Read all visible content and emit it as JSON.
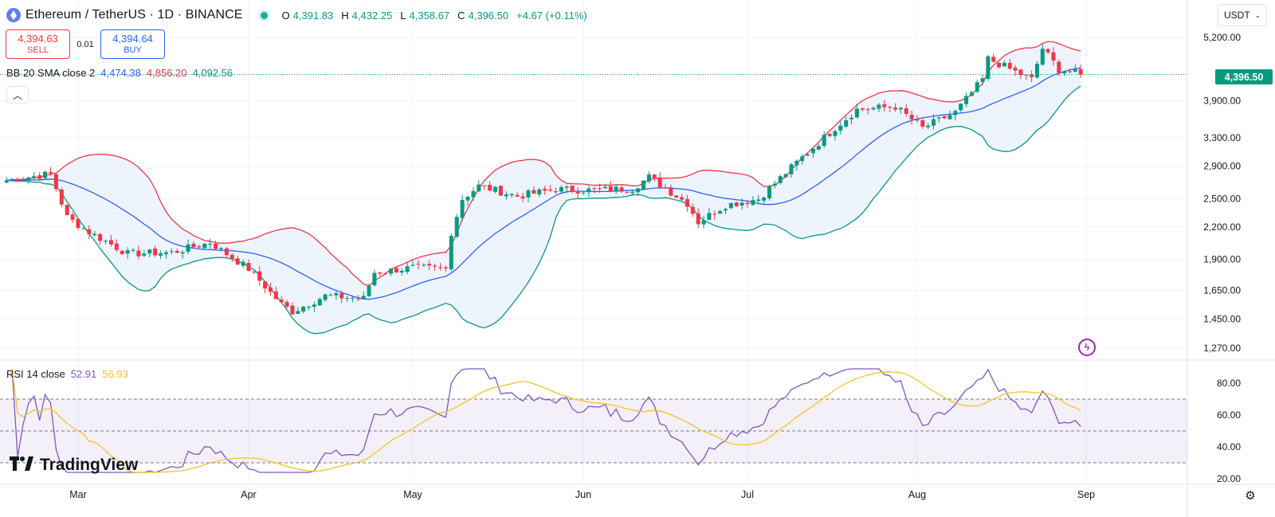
{
  "header": {
    "symbol": "Ethereum / TetherUS · 1D · BINANCE",
    "open_label": "O",
    "open": "4,391.83",
    "high_label": "H",
    "high": "4,432.25",
    "low_label": "L",
    "low": "4,358.67",
    "close_label": "C",
    "close": "4,396.50",
    "change": "+4.67 (+0.11%)"
  },
  "trade": {
    "sell_price": "4,394.63",
    "sell_label": "SELL",
    "spread": "0.01",
    "buy_price": "4,394.64",
    "buy_label": "BUY"
  },
  "bb": {
    "name": "BB 20 SMA close 2",
    "basis": "4,474.38",
    "upper": "4,856.20",
    "lower": "4,092.56"
  },
  "rsi": {
    "name": "RSI 14 close",
    "value": "52.91",
    "ma": "56.93",
    "levels": [
      70,
      50,
      30
    ],
    "ticks": [
      "80.00",
      "60.00",
      "40.00",
      "20.00"
    ]
  },
  "currency": "USDT",
  "last_price": "4,396.50",
  "price_axis": [
    "5,200.00",
    "3,900.00",
    "3,300.00",
    "2,900.00",
    "2,500.00",
    "2,200.00",
    "1,900.00",
    "1,650.00",
    "1,450.00",
    "1,270.00"
  ],
  "time_axis": [
    "Mar",
    "Apr",
    "May",
    "Jun",
    "Jul",
    "Aug",
    "Sep"
  ],
  "logo": "TradingView",
  "colors": {
    "up": "#089981",
    "down": "#f23645",
    "basis": "#2962ff",
    "rsi": "#7e57c2",
    "rsi_ma": "#f7c229",
    "band_fill": "#eef4fd"
  },
  "icons": {
    "collapse": "chevron-up-icon",
    "flash": "lightning-icon",
    "settings": "gear-icon",
    "currency_menu": "chevron-down-icon"
  },
  "chart_data": {
    "type": "candlestick",
    "title": "Ethereum / TetherUS · 1D · BINANCE",
    "y_scale": "log",
    "price_ticks": [
      5200,
      3900,
      3300,
      2900,
      2500,
      2200,
      1900,
      1650,
      1450,
      1270
    ],
    "month_labels": [
      "Mar",
      "Apr",
      "May",
      "Jun",
      "Jul",
      "Aug",
      "Sep"
    ],
    "ohlc_keypoints": [
      [
        "Feb 16",
        2720
      ],
      [
        "Feb 24",
        2800
      ],
      [
        "Feb 27",
        2300
      ],
      [
        "Mar 3",
        2150
      ],
      [
        "Mar 10",
        1950
      ],
      [
        "Mar 18",
        1960
      ],
      [
        "Mar 25",
        2050
      ],
      [
        "Apr 1",
        1820
      ],
      [
        "Apr 7",
        1550
      ],
      [
        "Apr 9",
        1500
      ],
      [
        "Apr 15",
        1610
      ],
      [
        "Apr 22",
        1590
      ],
      [
        "Apr 24",
        1790
      ],
      [
        "May 1",
        1830
      ],
      [
        "May 7",
        1820
      ],
      [
        "May 8",
        2150
      ],
      [
        "May 10",
        2500
      ],
      [
        "May 13",
        2650
      ],
      [
        "May 20",
        2530
      ],
      [
        "May 27",
        2610
      ],
      [
        "Jun 3",
        2600
      ],
      [
        "Jun 10",
        2620
      ],
      [
        "Jun 13",
        2760
      ],
      [
        "Jun 20",
        2450
      ],
      [
        "Jun 22",
        2250
      ],
      [
        "Jun 27",
        2430
      ],
      [
        "Jul 3",
        2500
      ],
      [
        "Jul 10",
        2950
      ],
      [
        "Jul 17",
        3450
      ],
      [
        "Jul 21",
        3750
      ],
      [
        "Jul 28",
        3800
      ],
      [
        "Aug 2",
        3450
      ],
      [
        "Aug 8",
        3700
      ],
      [
        "Aug 13",
        4300
      ],
      [
        "Aug 14",
        4720
      ],
      [
        "Aug 22",
        4300
      ],
      [
        "Aug 24",
        4950
      ],
      [
        "Aug 27",
        4500
      ],
      [
        "Aug 31",
        4396.5
      ]
    ],
    "bollinger": {
      "length": 20,
      "basis": 4474.38,
      "upper": 4856.2,
      "lower": 4092.56
    },
    "rsi": {
      "length": 14,
      "value": 52.91,
      "ma": 56.93,
      "overbought": 70,
      "oversold": 30,
      "ylim": [
        20,
        90
      ]
    }
  }
}
